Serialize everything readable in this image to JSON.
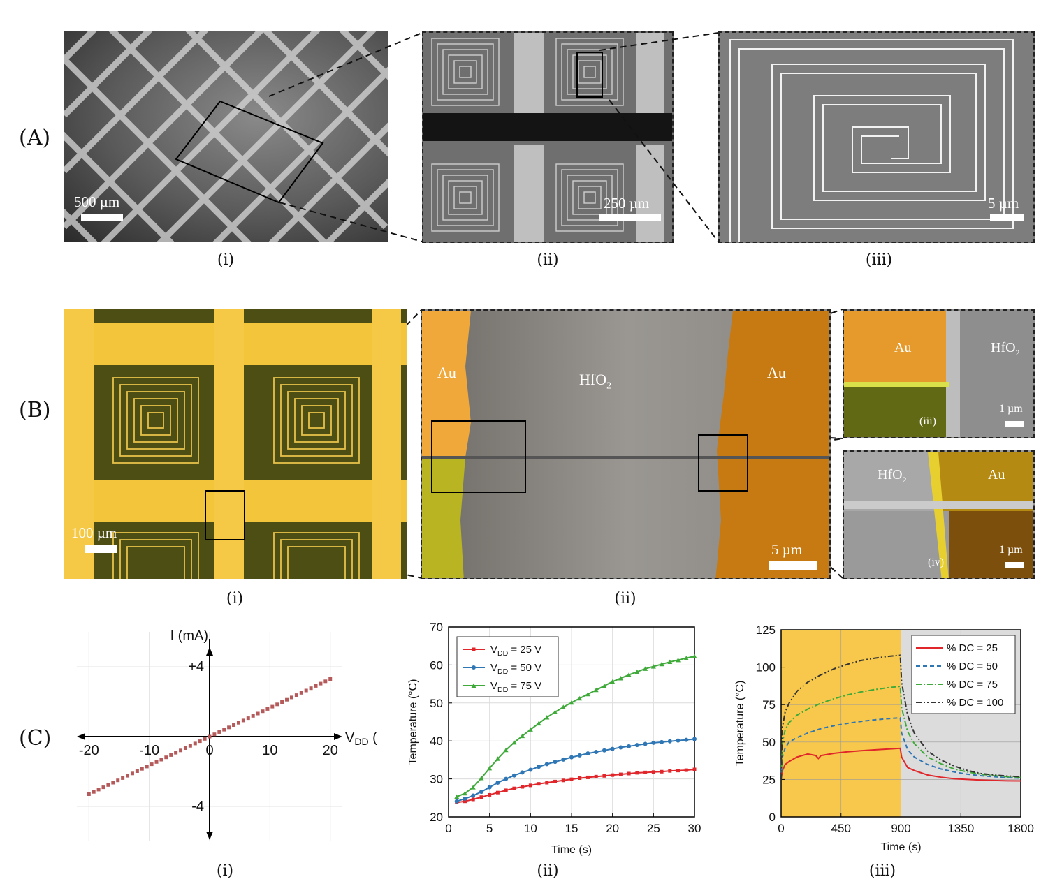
{
  "rows": {
    "a": "(A)",
    "b": "(B)",
    "c": "(C)"
  },
  "row_a": {
    "sub_i": "(i)",
    "sub_ii": "(ii)",
    "sub_iii": "(iii)",
    "scale_i": "500 µm",
    "scale_ii": "250 µm",
    "scale_iii": "5 µm"
  },
  "row_b": {
    "sub_i": "(i)",
    "sub_ii": "(ii)",
    "scale_i": "100 µm",
    "scale_ii": "5 µm",
    "scale_iii": "1 µm",
    "scale_iv": "1 µm",
    "au": "Au",
    "hfo2_base": "HfO",
    "hfo2_sub": "2",
    "inset_iii": "(iii)",
    "inset_iv": "(iv)"
  },
  "row_c": {
    "sub_i": "(i)",
    "sub_ii": "(ii)",
    "sub_iii": "(iii)"
  },
  "colors": {
    "red": "#e0262b",
    "blue": "#2f76b5",
    "green": "#3faa3a",
    "gold": "#f7c84b",
    "gray": "#dcdcdc",
    "iv_points": "#b55a5a"
  },
  "chart_data": [
    {
      "type": "scatter",
      "xlabel_base": "V",
      "xlabel_sub": "DD",
      "xlabel_unit": " (V)",
      "ylabel": "I (mA)",
      "xticks": [
        -20,
        -10,
        0,
        10,
        20
      ],
      "xtick_labels": [
        "-20",
        "-10",
        "0",
        "10",
        "20"
      ],
      "yticks": [
        4,
        -4
      ],
      "ytick_labels": [
        "+4",
        "-4"
      ],
      "xlim": [
        -22,
        22
      ],
      "ylim": [
        -6,
        6
      ],
      "series": [
        {
          "x_start": -20,
          "x_end": 20,
          "x_step": 0.8,
          "slope": 0.165
        }
      ]
    },
    {
      "type": "line",
      "xlabel": "Time (s)",
      "ylabel": "Temperature (°C)",
      "xlim": [
        0,
        30
      ],
      "ylim": [
        20,
        70
      ],
      "xticks": [
        0,
        5,
        10,
        15,
        20,
        25,
        30
      ],
      "yticks": [
        20,
        30,
        40,
        50,
        60,
        70
      ],
      "legend_position": "top-left",
      "x": [
        1,
        2,
        3,
        4,
        5,
        6,
        7,
        8,
        9,
        10,
        11,
        12,
        13,
        14,
        15,
        16,
        17,
        18,
        19,
        20,
        21,
        22,
        23,
        24,
        25,
        26,
        27,
        28,
        29,
        30
      ],
      "series": [
        {
          "name_base": "V",
          "name_sub": "DD",
          "name_rest": " = 25 V",
          "marker": "square",
          "values": [
            23.8,
            24.1,
            24.6,
            25.2,
            25.8,
            26.4,
            27.0,
            27.5,
            27.9,
            28.3,
            28.7,
            29.0,
            29.3,
            29.6,
            29.9,
            30.2,
            30.4,
            30.6,
            30.8,
            31.0,
            31.2,
            31.4,
            31.6,
            31.7,
            31.8,
            31.9,
            32.1,
            32.2,
            32.3,
            32.5
          ]
        },
        {
          "name_base": "V",
          "name_sub": "DD",
          "name_rest": " = 50 V",
          "marker": "circle",
          "values": [
            24.1,
            24.8,
            25.6,
            26.6,
            27.8,
            29.0,
            30.0,
            30.9,
            31.7,
            32.4,
            33.2,
            33.9,
            34.5,
            35.1,
            35.7,
            36.2,
            36.7,
            37.1,
            37.5,
            37.9,
            38.3,
            38.6,
            38.9,
            39.2,
            39.5,
            39.7,
            39.9,
            40.1,
            40.3,
            40.5
          ]
        },
        {
          "name_base": "V",
          "name_sub": "DD",
          "name_rest": " = 75 V",
          "marker": "triangle",
          "values": [
            25.3,
            26.2,
            27.8,
            30.2,
            32.8,
            35.3,
            37.6,
            39.6,
            41.3,
            43.0,
            44.6,
            46.2,
            47.6,
            48.9,
            50.1,
            51.2,
            52.3,
            53.4,
            54.5,
            55.6,
            56.5,
            57.4,
            58.2,
            59.0,
            59.6,
            60.2,
            60.8,
            61.3,
            61.8,
            62.3
          ]
        }
      ]
    },
    {
      "type": "line",
      "xlabel": "Time (s)",
      "ylabel": "Temperature (°C)",
      "xlim": [
        0,
        1800
      ],
      "ylim": [
        0,
        125
      ],
      "xticks": [
        0,
        450,
        900,
        1350,
        1800
      ],
      "yticks": [
        0,
        25,
        50,
        75,
        100,
        125
      ],
      "shaded_regions": [
        {
          "from": 0,
          "to": 900,
          "color": "gold"
        },
        {
          "from": 900,
          "to": 1800,
          "color": "gray"
        }
      ],
      "legend_position": "top-right",
      "series": [
        {
          "name": "% DC = 25",
          "style": "solid",
          "color": "red",
          "x": [
            0,
            10,
            30,
            60,
            120,
            200,
            260,
            280,
            300,
            400,
            500,
            600,
            700,
            800,
            895,
            905,
            950,
            1000,
            1100,
            1200,
            1300,
            1400,
            1500,
            1600,
            1700,
            1800
          ],
          "y": [
            25,
            31,
            35,
            37,
            40,
            42,
            41,
            39,
            41,
            42.5,
            43.5,
            44.2,
            44.8,
            45.3,
            45.8,
            40,
            33,
            31,
            28,
            26.5,
            25.5,
            25,
            24.6,
            24.3,
            24.1,
            24
          ]
        },
        {
          "name": "% DC = 50",
          "style": "dashed",
          "color": "blue",
          "x": [
            0,
            10,
            30,
            60,
            120,
            200,
            300,
            400,
            500,
            600,
            700,
            800,
            895,
            905,
            950,
            1000,
            1100,
            1200,
            1300,
            1400,
            1500,
            1600,
            1700,
            1800
          ],
          "y": [
            25,
            40,
            46,
            50,
            53,
            56,
            59,
            61,
            62.5,
            63.8,
            64.8,
            65.6,
            66.2,
            56,
            45,
            40,
            35,
            32,
            30,
            28.5,
            27.5,
            26.8,
            26.2,
            25.8
          ]
        },
        {
          "name": "% DC = 75",
          "style": "dashdot",
          "color": "green",
          "x": [
            0,
            10,
            30,
            60,
            120,
            200,
            300,
            400,
            500,
            600,
            700,
            800,
            895,
            905,
            950,
            1000,
            1100,
            1200,
            1300,
            1400,
            1500,
            1600,
            1700,
            1800
          ],
          "y": [
            25,
            50,
            58,
            63,
            68,
            72,
            76,
            79,
            81.5,
            83.5,
            85,
            86.3,
            87.2,
            73,
            57,
            49,
            40,
            35.5,
            32,
            30,
            28.5,
            27.5,
            26.8,
            26.3
          ]
        },
        {
          "name": "% DC = 100",
          "style": "dashdotdot",
          "color": "#333333",
          "x": [
            0,
            10,
            30,
            60,
            120,
            200,
            300,
            400,
            500,
            600,
            700,
            800,
            895,
            905,
            950,
            1000,
            1100,
            1200,
            1300,
            1400,
            1500,
            1600,
            1700,
            1800
          ],
          "y": [
            25,
            60,
            70,
            76,
            84,
            90,
            95,
            99,
            102,
            104.5,
            106,
            107.2,
            108,
            90,
            68,
            56,
            44,
            38,
            34,
            31,
            29,
            28,
            27.3,
            26.8
          ]
        }
      ]
    }
  ]
}
